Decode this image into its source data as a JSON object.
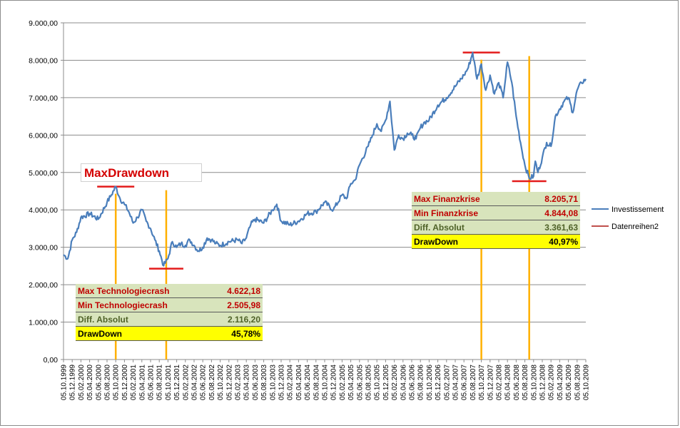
{
  "chart_data": {
    "type": "line",
    "title": "",
    "xlabel": "",
    "ylabel": "",
    "ylim": [
      0,
      9000
    ],
    "y_ticks": [
      "0,00",
      "1.000,00",
      "2.000,00",
      "3.000,00",
      "4.000,00",
      "5.000,00",
      "6.000,00",
      "7.000,00",
      "8.000,00",
      "9.000,00"
    ],
    "x_tick_labels": [
      "05.10.1999",
      "05.12.1999",
      "05.02.2000",
      "05.04.2000",
      "05.06.2000",
      "05.08.2000",
      "05.10.2000",
      "05.12.2000",
      "05.02.2001",
      "05.04.2001",
      "05.06.2001",
      "05.08.2001",
      "05.10.2001",
      "05.12.2001",
      "05.02.2002",
      "05.04.2002",
      "05.06.2002",
      "05.08.2002",
      "05.10.2002",
      "05.12.2002",
      "05.02.2003",
      "05.04.2003",
      "05.06.2003",
      "05.08.2003",
      "05.10.2003",
      "05.12.2003",
      "05.02.2004",
      "05.04.2004",
      "05.06.2004",
      "05.08.2004",
      "05.10.2004",
      "05.12.2004",
      "05.02.2005",
      "05.04.2005",
      "05.06.2005",
      "05.08.2005",
      "05.10.2005",
      "05.12.2005",
      "05.02.2006",
      "05.04.2006",
      "05.06.2006",
      "05.08.2006",
      "05.10.2006",
      "05.12.2006",
      "05.02.2007",
      "05.04.2007",
      "05.06.2007",
      "05.08.2007",
      "05.10.2007",
      "05.12.2007",
      "05.02.2008",
      "05.04.2008",
      "05.06.2008",
      "05.08.2008",
      "05.10.2008",
      "05.12.2008",
      "05.02.2009",
      "05.04.2009",
      "05.06.2009",
      "05.08.2009",
      "05.10.2009"
    ],
    "grid": true,
    "legend_position": "right",
    "series": [
      {
        "name": "Investissement",
        "color": "#4a7ebb",
        "x_index": [
          0,
          0.5,
          1,
          1.5,
          2,
          3,
          4,
          5,
          5.5,
          6,
          6.5,
          7,
          7.5,
          8,
          8.5,
          9,
          9.5,
          10,
          10.5,
          11,
          11.5,
          12,
          12.5,
          13,
          13.5,
          14,
          14.5,
          15,
          15.5,
          16,
          16.5,
          17,
          17.5,
          18,
          19,
          20,
          20.5,
          21,
          21.5,
          22,
          23,
          24,
          24.5,
          25,
          26,
          27,
          28,
          29,
          30,
          31,
          32,
          32.5,
          33,
          33.5,
          34,
          35,
          35.5,
          36,
          36.5,
          37,
          37.5,
          38,
          38.5,
          39,
          39.5,
          40,
          40.5,
          41,
          41.5,
          42,
          43,
          44,
          45,
          46,
          46.5,
          47,
          47.5,
          48,
          48.5,
          49,
          49.5,
          50,
          50.5,
          51,
          51.5,
          52,
          52.5,
          53,
          53.5,
          54,
          54.2,
          54.5,
          55,
          55.5,
          56,
          56.5,
          57,
          57.5,
          58,
          58.5,
          59,
          59.5,
          60
        ],
        "values": [
          2800,
          2700,
          3200,
          3400,
          3800,
          3900,
          3750,
          4200,
          4400,
          4622,
          4300,
          4150,
          3950,
          3650,
          3800,
          4000,
          3700,
          3500,
          3200,
          2900,
          2506,
          2700,
          3150,
          3000,
          3100,
          3050,
          3200,
          3050,
          2900,
          3000,
          3250,
          3200,
          3100,
          3050,
          3150,
          3200,
          3100,
          3250,
          3600,
          3750,
          3650,
          4000,
          4150,
          3700,
          3600,
          3700,
          3900,
          3950,
          4200,
          4000,
          4400,
          4300,
          4700,
          4800,
          5200,
          5700,
          6000,
          6300,
          6100,
          6400,
          6900,
          5600,
          6000,
          5900,
          6050,
          6000,
          5900,
          6200,
          6350,
          6400,
          6800,
          7000,
          7300,
          7600,
          7800,
          8206,
          7500,
          7900,
          7200,
          7600,
          7100,
          7400,
          7000,
          7950,
          7400,
          6500,
          5800,
          5200,
          4844,
          4900,
          5300,
          5000,
          5400,
          5800,
          5700,
          6500,
          6700,
          6900,
          7000,
          6600,
          7200,
          7400,
          7500
        ]
      },
      {
        "name": "Datenreihen2",
        "color": "#c0504d",
        "values": []
      }
    ],
    "annotations": {
      "max_drawdown_label": "MaxDrawdown",
      "technologiecrash": {
        "max_x": 6,
        "max_y": 4622.18,
        "min_x": 11.8,
        "min_y": 2505.98
      },
      "finanzkrise": {
        "max_x": 48,
        "max_y": 8205.71,
        "min_x": 53.5,
        "min_y": 4844.08
      }
    }
  },
  "tables": {
    "tech": {
      "rows": [
        {
          "label": "Max Technologiecrash",
          "value": "4.622,18"
        },
        {
          "label": "Min Technologiecrash",
          "value": "2.505,98"
        },
        {
          "label": "Diff. Absolut",
          "value": "2.116,20"
        },
        {
          "label": "DrawDown",
          "value": "45,78%"
        }
      ]
    },
    "finanz": {
      "rows": [
        {
          "label": "Max Finanzkrise",
          "value": "8.205,71"
        },
        {
          "label": "Min Finanzkrise",
          "value": "4.844,08"
        },
        {
          "label": "Diff. Absolut",
          "value": "3.361,63"
        },
        {
          "label": "DrawDown",
          "value": "40,97%"
        }
      ]
    }
  },
  "colors": {
    "series_line": "#4a7ebb",
    "marker_red": "#e31b1b",
    "marker_orange": "#ffb000",
    "grid": "#8c8c8c"
  }
}
